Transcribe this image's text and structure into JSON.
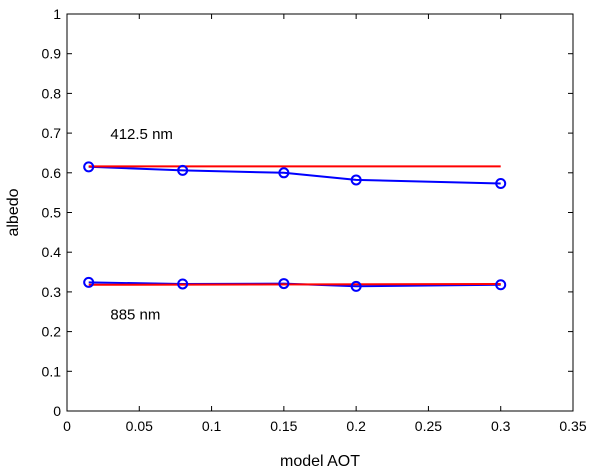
{
  "chart_data": {
    "type": "line",
    "xlabel": "model AOT",
    "ylabel": "albedo",
    "xlim": [
      0,
      0.35
    ],
    "ylim": [
      0,
      1
    ],
    "xticks": [
      0,
      0.05,
      0.1,
      0.15,
      0.2,
      0.25,
      0.3,
      0.35
    ],
    "xtick_labels": [
      "0",
      "0.05",
      "0.1",
      "0.15",
      "0.2",
      "0.25",
      "0.3",
      "0.35"
    ],
    "yticks": [
      0,
      0.1,
      0.2,
      0.3,
      0.4,
      0.5,
      0.6,
      0.7,
      0.8,
      0.9,
      1
    ],
    "ytick_labels": [
      "0",
      "0.1",
      "0.2",
      "0.3",
      "0.4",
      "0.5",
      "0.6",
      "0.7",
      "0.8",
      "0.9",
      "1"
    ],
    "grid": false,
    "series": [
      {
        "color": "#0000ff",
        "marker": "circle",
        "x": [
          0.015,
          0.08,
          0.15,
          0.2,
          0.3
        ],
        "y": [
          0.615,
          0.606,
          0.6,
          0.582,
          0.573
        ]
      },
      {
        "color": "#ff0000",
        "marker": "none",
        "x": [
          0.015,
          0.3
        ],
        "y": [
          0.616,
          0.616
        ]
      },
      {
        "color": "#0000ff",
        "marker": "circle",
        "x": [
          0.015,
          0.08,
          0.15,
          0.2,
          0.3
        ],
        "y": [
          0.324,
          0.32,
          0.321,
          0.314,
          0.318
        ]
      },
      {
        "color": "#ff0000",
        "marker": "none",
        "x": [
          0.015,
          0.3
        ],
        "y": [
          0.318,
          0.32
        ]
      }
    ],
    "annotations": [
      {
        "text": "412.5 nm",
        "x": 0.03,
        "y": 0.685
      },
      {
        "text": "885 nm",
        "x": 0.03,
        "y": 0.23
      }
    ]
  }
}
